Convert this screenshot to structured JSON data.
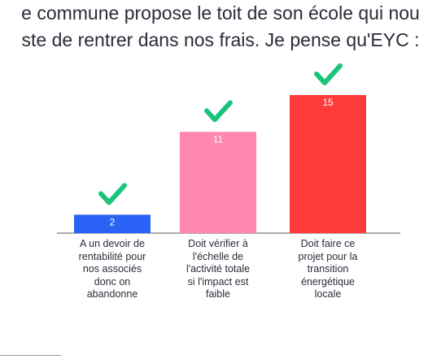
{
  "chart_data": {
    "type": "bar",
    "title_lines": [
      "e commune propose le toit de son école qui nou",
      "ste de rentrer dans nos frais. Je pense qu'EYC :"
    ],
    "categories": [
      "A un devoir de rentabilité pour nos associés donc on abandonne",
      "Doit vérifier à l'échelle de l'activité totale si l'impact est faible",
      "Doit faire ce projet pour la transition énergétique locale"
    ],
    "category_label_lines": [
      [
        "A un devoir de",
        "rentabilité pour",
        "nos associés",
        "donc on",
        "abandonne"
      ],
      [
        "Doit vérifier à",
        "l'échelle de",
        "l'activité totale",
        "si l'impact est",
        "faible"
      ],
      [
        "Doit faire ce",
        "projet pour la",
        "transition",
        "énergétique",
        "locale"
      ]
    ],
    "values": [
      2,
      11,
      15
    ],
    "value_labels": [
      "2",
      "11",
      "15"
    ],
    "colors": [
      "#2a62f5",
      "#ff86ad",
      "#ff3b3b"
    ],
    "check_color": "#1bc47a",
    "check_icon": "check-icon",
    "ylim": [
      0,
      15
    ]
  }
}
